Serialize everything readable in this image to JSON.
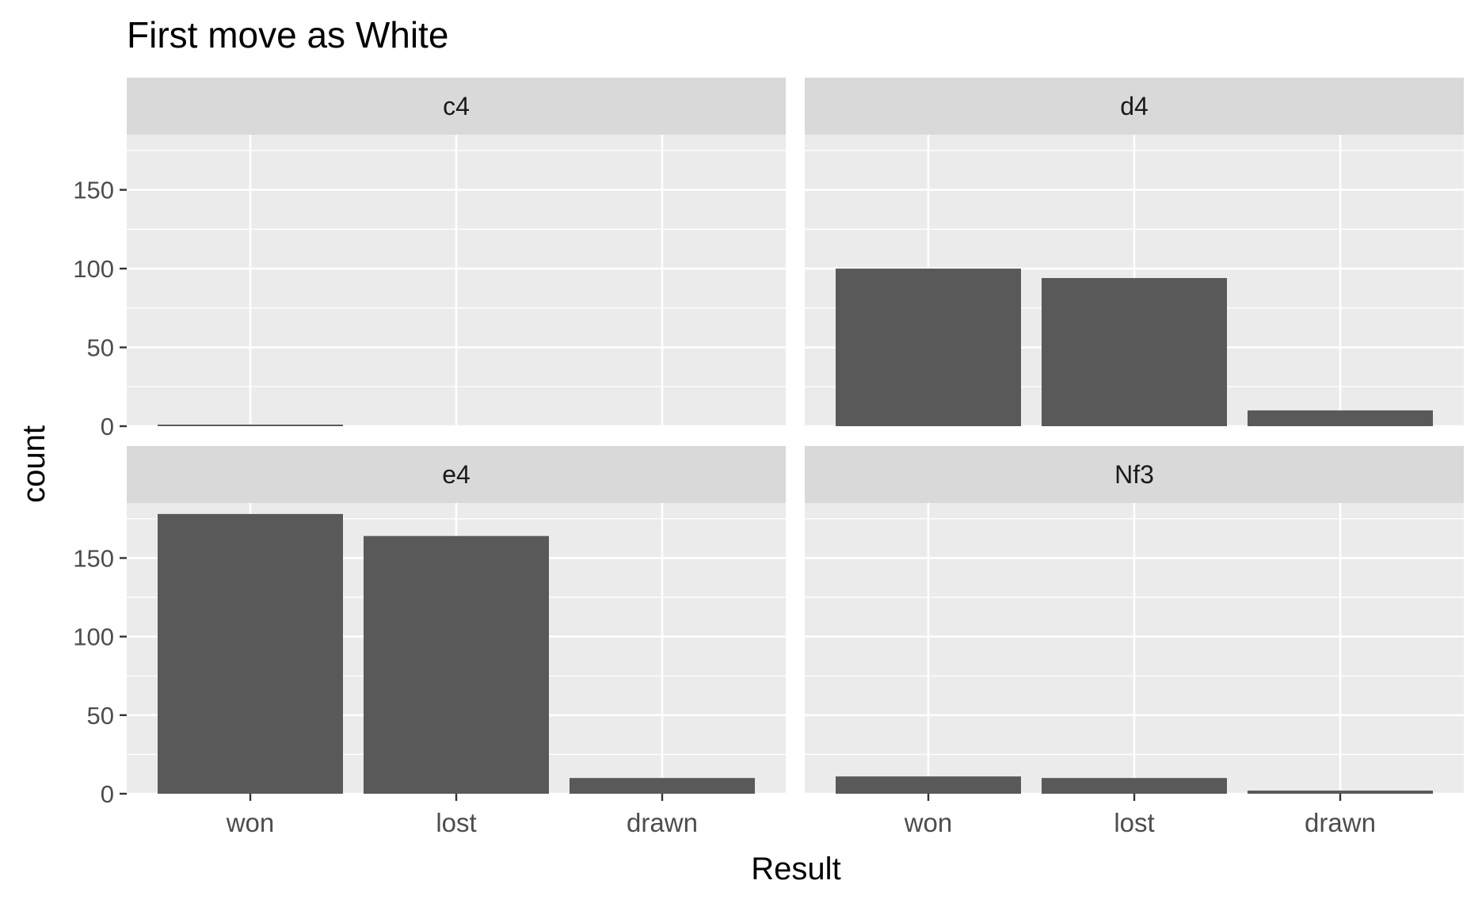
{
  "chart_data": {
    "type": "bar",
    "title": "First move as White",
    "xlabel": "Result",
    "ylabel": "count",
    "categories": [
      "won",
      "lost",
      "drawn"
    ],
    "ylim": [
      0,
      185
    ],
    "yticks": [
      0,
      50,
      100,
      150
    ],
    "facets": [
      {
        "label": "c4",
        "values": [
          1,
          0,
          0
        ]
      },
      {
        "label": "d4",
        "values": [
          100,
          94,
          10
        ]
      },
      {
        "label": "e4",
        "values": [
          178,
          164,
          10
        ]
      },
      {
        "label": "Nf3",
        "values": [
          11,
          10,
          2
        ]
      }
    ],
    "grid": true,
    "legend": "none",
    "colors": {
      "bar": "#595959",
      "panel_bg": "#ebebeb",
      "strip_bg": "#d9d9d9",
      "grid": "#ffffff",
      "text": "#000000",
      "tick_text": "#4d4d4d"
    }
  }
}
